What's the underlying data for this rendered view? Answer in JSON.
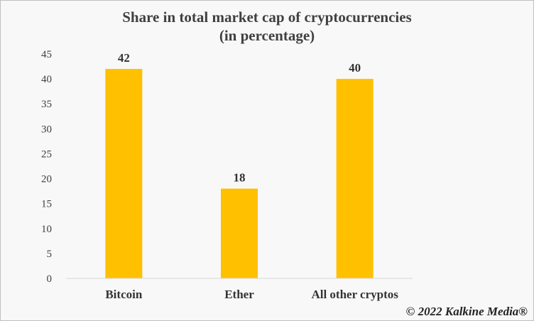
{
  "chart_data": {
    "type": "bar",
    "title_lines": [
      "Share in  total market cap of cryptocurrencies",
      "(in percentage)"
    ],
    "xlabel": "",
    "ylabel": "",
    "categories": [
      "Bitcoin",
      "Ether",
      "All other cryptos"
    ],
    "values": [
      42,
      18,
      40
    ],
    "data_labels": [
      "42",
      "18",
      "40"
    ],
    "ylim": [
      0,
      45
    ],
    "yticks": [
      0,
      5,
      10,
      15,
      20,
      25,
      30,
      35,
      40,
      45
    ],
    "bar_color": "#FFC000",
    "grid": false,
    "legend": "none"
  },
  "footer": {
    "credit": "© 2022 Kalkine Media®"
  }
}
